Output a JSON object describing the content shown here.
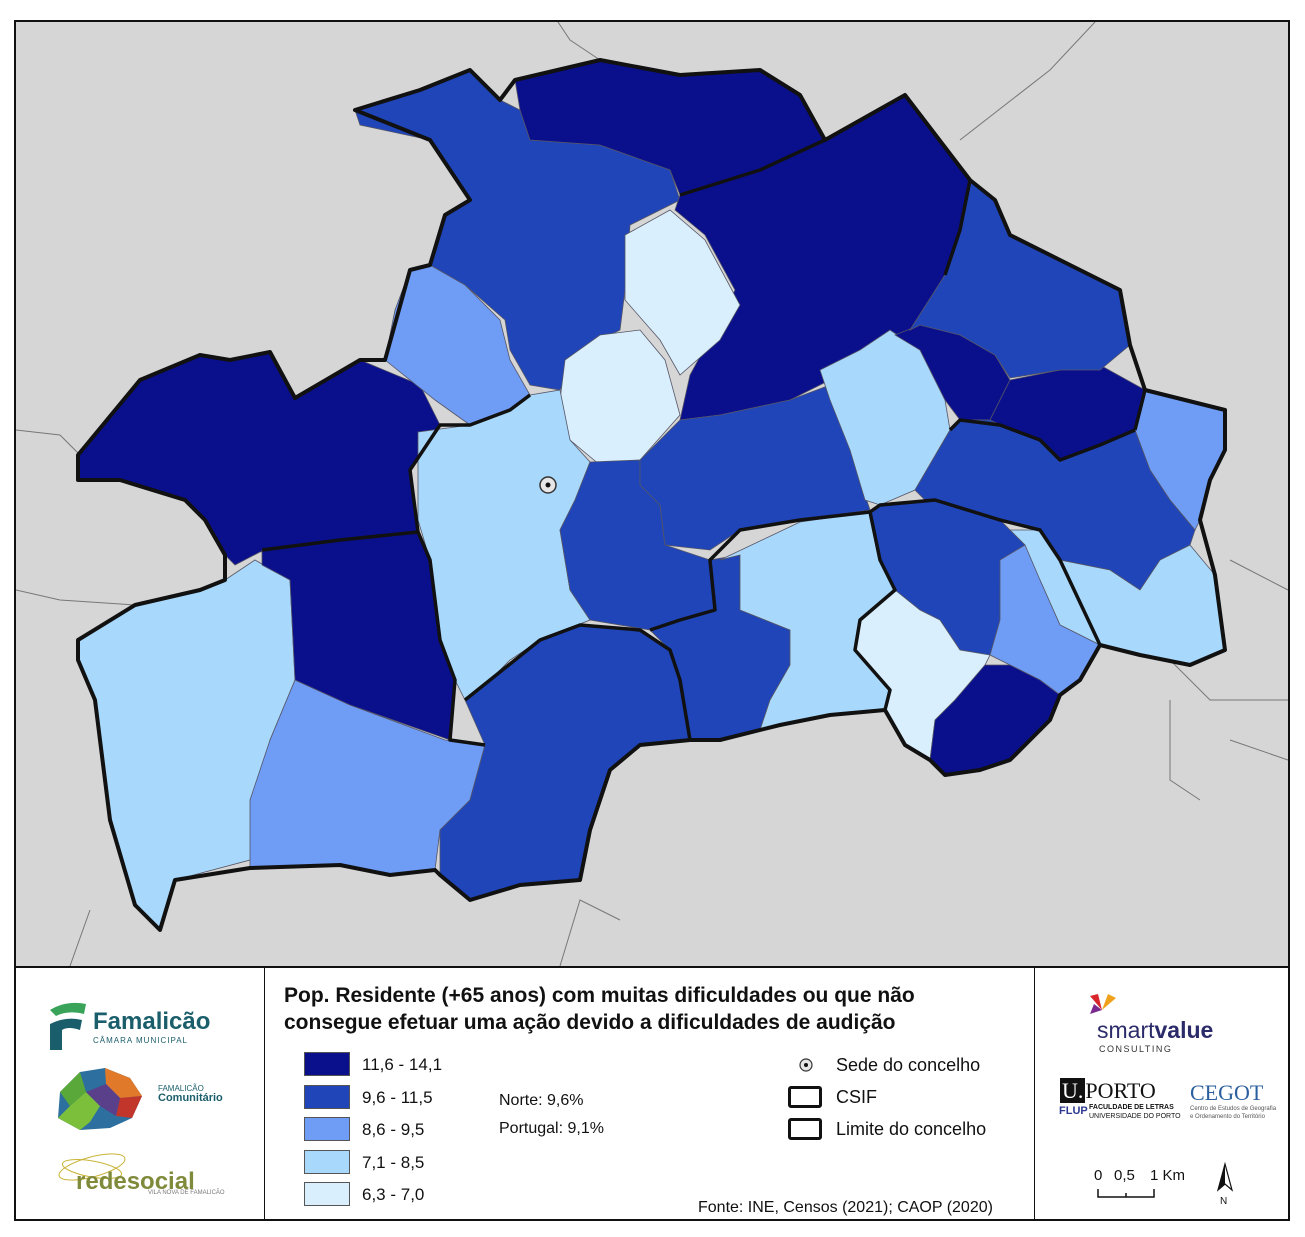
{
  "map": {
    "seat_marker": "sede-do-concelho-point",
    "colors": {
      "background": "#d6d6d6",
      "class_1": "#0a0f8c",
      "class_2": "#1f45b8",
      "class_3": "#6f9cf5",
      "class_4": "#a8d8fb",
      "class_5": "#d9effd",
      "border": "#111111"
    }
  },
  "legend": {
    "title_line1": "Pop. Residente (+65 anos) com muitas dificuldades ou que não",
    "title_line2": "consegue efetuar uma ação devido a dificuldades de audição",
    "classes": [
      {
        "label": "11,6 - 14,1",
        "color": "#0a0f8c"
      },
      {
        "label": "9,6 - 11,5",
        "color": "#1f45b8"
      },
      {
        "label": "8,6 - 9,5",
        "color": "#6f9cf5"
      },
      {
        "label": "7,1 - 8,5",
        "color": "#a8d8fb"
      },
      {
        "label": "6,3 - 7,0",
        "color": "#d9effd"
      }
    ],
    "stats": {
      "norte": "Norte: 9,6%",
      "portugal": "Portugal: 9,1%"
    },
    "symbols": {
      "sede": "Sede do concelho",
      "csif": "CSIF",
      "limite": "Limite do concelho"
    },
    "source": "Fonte: INE, Censos (2021); CAOP (2020)"
  },
  "logos": {
    "famalicao": "Famalicão",
    "camara": "CÂMARA MUNICIPAL",
    "comunitario_1": "FAMALICÃO",
    "comunitario_2": "Comunitário",
    "redesocial": "redesocial",
    "redesocial_sub": "VILA NOVA DE FAMALICÃO",
    "smartvalue_a": "smart",
    "smartvalue_b": "value",
    "consulting": "CONSULTING",
    "uporto": "PORTO",
    "uporto_u": "U.",
    "flup": "FLUP",
    "flup_1": "FACULDADE DE LETRAS",
    "flup_2": "UNIVERSIDADE DO PORTO",
    "cegot": "CEGOT",
    "cegot_1": "Centro de Estudos de Geografia",
    "cegot_2": "e Ordenamento do Território"
  },
  "scale_bar": {
    "ticks": [
      "0",
      "0,5",
      "1 Km"
    ],
    "north": "N"
  }
}
